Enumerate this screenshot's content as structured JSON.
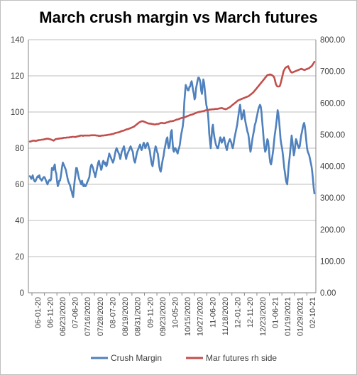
{
  "chart_data": {
    "type": "line",
    "title": "March crush margin vs March futures",
    "xlabel": "",
    "ylabel_left": "",
    "ylabel_right": "",
    "ylim_left": [
      0,
      140
    ],
    "ylim_right": [
      0,
      800
    ],
    "left_ticks": [
      "0",
      "20",
      "40",
      "60",
      "80",
      "100",
      "120",
      "140"
    ],
    "right_ticks": [
      "0.00",
      "100.00",
      "200.00",
      "300.00",
      "400.00",
      "500.00",
      "600.00",
      "700.00",
      "800.00"
    ],
    "grid": true,
    "legend_position": "bottom",
    "x_ticks": [
      "06-01-20",
      "06-11-20",
      "06/23/2020",
      "07-06-20",
      "07/16/2020",
      "07/28/2020",
      "08-07-20",
      "08/19/2020",
      "08/31/2020",
      "09-11-20",
      "09/23/2020",
      "10-05-20",
      "10/15/2020",
      "10/27/2020",
      "11-06-20",
      "11/18/2020",
      "12-01-20",
      "12-11-20",
      "12/23/2020",
      "01-06-21",
      "01/19/2021",
      "01/29/2021",
      "02-10-21"
    ],
    "series": [
      {
        "name": "Crush Margin",
        "axis": "left",
        "color": "#4f81bd",
        "values": [
          64.5,
          64,
          63,
          64,
          65,
          63,
          62,
          61.5,
          62,
          63,
          64,
          64.5,
          64,
          65,
          63,
          63,
          62,
          62.5,
          63.5,
          64,
          64,
          63,
          62,
          61,
          60,
          61,
          62,
          62.5,
          62,
          63,
          69,
          69,
          68,
          70,
          71,
          67,
          66,
          62,
          59,
          60,
          62,
          62,
          64,
          67,
          70,
          72,
          71,
          70,
          69,
          68,
          66,
          64,
          62,
          61,
          60,
          59,
          57,
          56,
          54,
          53,
          58,
          62,
          65,
          69,
          69,
          67,
          65,
          63,
          62,
          61,
          60,
          62,
          60,
          59,
          60,
          59,
          59,
          60,
          61,
          62,
          63,
          64,
          68,
          70,
          71,
          70,
          69,
          67,
          66,
          64,
          66,
          68,
          70,
          72,
          73,
          71,
          70,
          68,
          69,
          72,
          73,
          72,
          71,
          72,
          70,
          71,
          73,
          75,
          77,
          76,
          75,
          74,
          73,
          72,
          73,
          75,
          77,
          79,
          80,
          79,
          78,
          77,
          76,
          74,
          76,
          78,
          79,
          80,
          81,
          79,
          76,
          74,
          76,
          77,
          78,
          79,
          80,
          81,
          80,
          79,
          78,
          75,
          73,
          72,
          74,
          76,
          78,
          79,
          80,
          81,
          82,
          80,
          79,
          80,
          82,
          83,
          82,
          80,
          81,
          82,
          83,
          82,
          80,
          79,
          76,
          73,
          71,
          70,
          73,
          76,
          79,
          81,
          80,
          78,
          77,
          74,
          70,
          68,
          67,
          69,
          72,
          74,
          76,
          79,
          81,
          83,
          85,
          86,
          82,
          80,
          81,
          85,
          89,
          90,
          84,
          79,
          78,
          80,
          80,
          79,
          78,
          77,
          79,
          80,
          82,
          85,
          88,
          90,
          92,
          96,
          105,
          110,
          115,
          114,
          113,
          112,
          112,
          114,
          114,
          116,
          117,
          115,
          112,
          110,
          107,
          108,
          113,
          115,
          117,
          119,
          119,
          118,
          116,
          112,
          110,
          114,
          118,
          116,
          112,
          108,
          104,
          102,
          100,
          95,
          88,
          84,
          80,
          85,
          91,
          93,
          89,
          86,
          84,
          82,
          81,
          80,
          80,
          82,
          84,
          86,
          85,
          83,
          84,
          85,
          86,
          84,
          82,
          80,
          79,
          81,
          83,
          84,
          85,
          84,
          83,
          81,
          80,
          82,
          85,
          87,
          89,
          91,
          93,
          96,
          99,
          102,
          104,
          100,
          96,
          97,
          99,
          101,
          98,
          95,
          93,
          91,
          89,
          88,
          85,
          81,
          78,
          80,
          83,
          86,
          88,
          90,
          93,
          94,
          96,
          98,
          100,
          102,
          103,
          104,
          103,
          100,
          95,
          90,
          85,
          81,
          78,
          79,
          82,
          85,
          84,
          80,
          75,
          72,
          71,
          73,
          76,
          79,
          83,
          87,
          90,
          93,
          97,
          101,
          99,
          95,
          90,
          85,
          82,
          80,
          77,
          73,
          69,
          66,
          63,
          61,
          60,
          65,
          70,
          74,
          78,
          82,
          87,
          84,
          80,
          76,
          78,
          82,
          85,
          84,
          82,
          81,
          80,
          81,
          84,
          87,
          89,
          91,
          93,
          94,
          92,
          88,
          84,
          80,
          78,
          77,
          76,
          74,
          72,
          70,
          67,
          63,
          58,
          55
        ]
      },
      {
        "name": "Mar futures rh side",
        "axis": "right",
        "color": "#c0504d",
        "values": [
          478,
          478,
          479,
          480,
          481,
          481,
          481,
          480,
          480,
          481,
          482,
          482,
          483,
          483,
          483,
          484,
          484,
          484,
          485,
          485,
          486,
          486,
          487,
          487,
          487,
          486,
          485,
          485,
          484,
          483,
          482,
          481,
          483,
          485,
          486,
          486,
          487,
          487,
          487,
          488,
          488,
          488,
          489,
          489,
          490,
          490,
          490,
          490,
          491,
          491,
          491,
          491,
          492,
          492,
          492,
          493,
          493,
          493,
          493,
          492,
          493,
          494,
          494,
          495,
          496,
          496,
          497,
          497,
          497,
          496,
          497,
          497,
          497,
          497,
          497,
          497,
          497,
          497,
          497,
          498,
          498,
          498,
          498,
          498,
          498,
          498,
          497,
          497,
          497,
          496,
          496,
          496,
          496,
          497,
          497,
          497,
          497,
          498,
          498,
          498,
          499,
          499,
          500,
          500,
          500,
          501,
          501,
          502,
          502,
          503,
          504,
          505,
          506,
          506,
          507,
          507,
          508,
          509,
          510,
          511,
          512,
          512,
          513,
          514,
          515,
          516,
          517,
          517,
          518,
          519,
          520,
          521,
          522,
          523,
          524,
          525,
          527,
          529,
          531,
          533,
          535,
          537,
          539,
          540,
          541,
          542,
          542,
          542,
          541,
          540,
          539,
          538,
          537,
          536,
          535,
          535,
          535,
          534,
          534,
          533,
          533,
          532,
          532,
          532,
          533,
          533,
          533,
          534,
          535,
          536,
          537,
          537,
          537,
          536,
          536,
          536,
          537,
          538,
          539,
          539,
          540,
          541,
          542,
          542,
          542,
          543,
          543,
          544,
          545,
          546,
          547,
          548,
          548,
          549,
          550,
          551,
          552,
          553,
          553,
          554,
          554,
          555,
          556,
          557,
          558,
          559,
          560,
          561,
          562,
          563,
          563,
          564,
          565,
          566,
          567,
          568,
          569,
          570,
          571,
          571,
          572,
          572,
          573,
          573,
          574,
          574,
          575,
          576,
          577,
          577,
          578,
          578,
          578,
          579,
          579,
          579,
          580,
          580,
          580,
          580,
          581,
          581,
          581,
          581,
          582,
          582,
          583,
          583,
          584,
          584,
          583,
          582,
          581,
          581,
          580,
          581,
          582,
          584,
          585,
          586,
          588,
          590,
          592,
          594,
          596,
          598,
          600,
          602,
          604,
          606,
          608,
          609,
          610,
          611,
          612,
          613,
          614,
          615,
          616,
          617,
          618,
          619,
          620,
          621,
          622,
          624,
          626,
          628,
          630,
          632,
          634,
          637,
          640,
          643,
          646,
          649,
          652,
          655,
          658,
          661,
          664,
          667,
          670,
          673,
          676,
          679,
          682,
          685,
          688,
          689,
          689,
          690,
          690,
          689,
          688,
          686,
          684,
          680,
          670,
          660,
          655,
          652,
          652,
          652,
          653,
          660,
          670,
          680,
          690,
          700,
          705,
          710,
          712,
          714,
          715,
          716,
          710,
          705,
          700,
          697,
          696,
          697,
          698,
          699,
          700,
          701,
          702,
          703,
          704,
          705,
          706,
          707,
          708,
          707,
          706,
          705,
          704,
          705,
          706,
          707,
          708,
          709,
          710,
          712,
          714,
          716,
          718,
          722,
          726,
          730
        ]
      }
    ]
  }
}
